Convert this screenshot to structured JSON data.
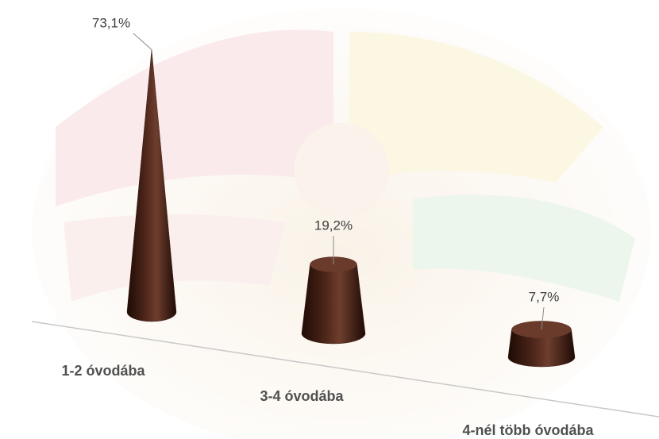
{
  "chart_data": {
    "type": "cone",
    "categories": [
      "1-2 óvodába",
      "3-4 óvodába",
      "4-nél több óvodába"
    ],
    "values": [
      73.1,
      19.2,
      7.7
    ],
    "value_labels": [
      "73,1%",
      "19,2%",
      "7,7%"
    ],
    "color": "#3d1c12"
  }
}
